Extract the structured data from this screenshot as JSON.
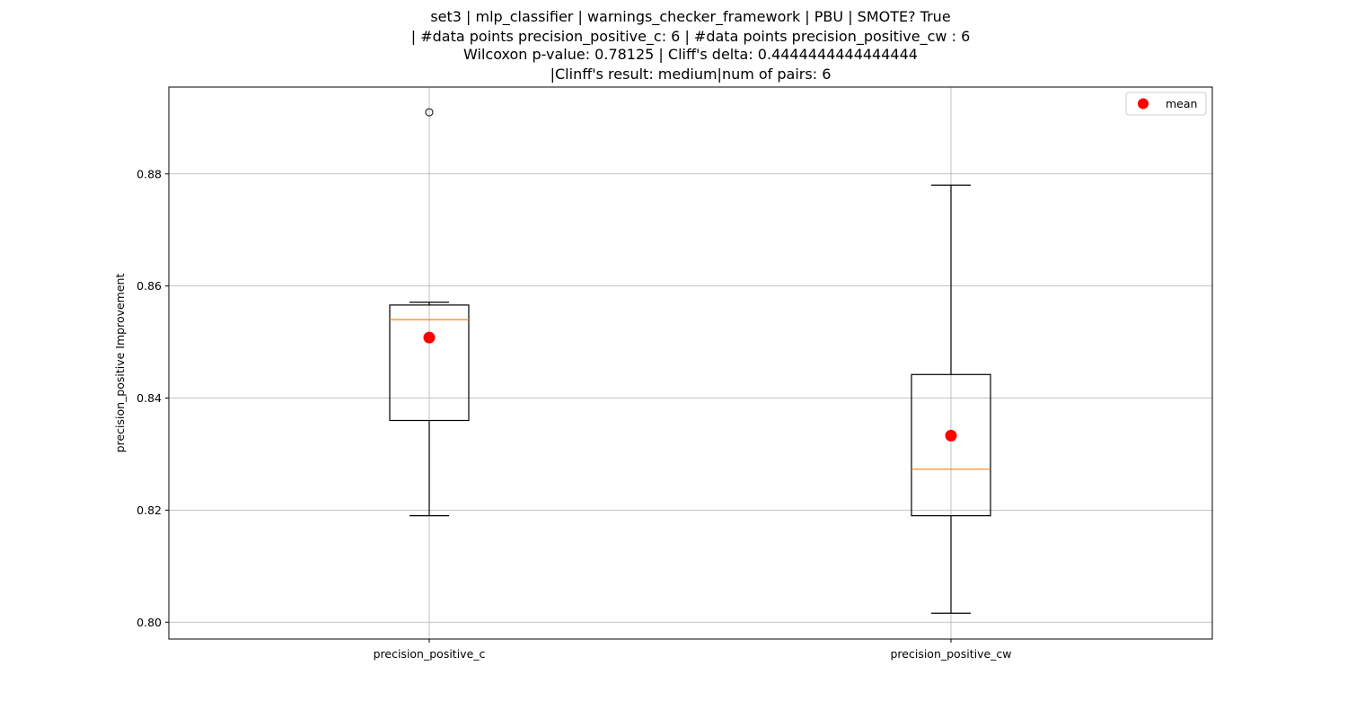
{
  "chart_data": {
    "type": "box",
    "title_lines": [
      "set3 | mlp_classifier | warnings_checker_framework | PBU | SMOTE? True",
      "| #data points precision_positive_c: 6 | #data points precision_positive_cw : 6",
      "Wilcoxon p-value: 0.78125 | Cliff's delta: 0.4444444444444444",
      "|Clinff's result: medium|num of pairs: 6"
    ],
    "xlabel": "",
    "ylabel": "precision_positive Improvement",
    "ylim": [
      0.797,
      0.8955
    ],
    "yticks": [
      0.8,
      0.82,
      0.84,
      0.86,
      0.88
    ],
    "ytick_labels": [
      "0.80",
      "0.82",
      "0.84",
      "0.86",
      "0.88"
    ],
    "grid": true,
    "legend": {
      "position": "top-right",
      "entries": [
        {
          "label": "mean",
          "color": "#ff0000",
          "marker": "circle"
        }
      ]
    },
    "categories": [
      "precision_positive_c",
      "precision_positive_cw"
    ],
    "boxes": [
      {
        "name": "precision_positive_c",
        "whisker_low": 0.819,
        "q1": 0.836,
        "median": 0.854,
        "q3": 0.8566,
        "whisker_high": 0.8571,
        "mean": 0.8508,
        "outliers": [
          0.891
        ]
      },
      {
        "name": "precision_positive_cw",
        "whisker_low": 0.8016,
        "q1": 0.819,
        "median": 0.8273,
        "q3": 0.8442,
        "whisker_high": 0.878,
        "mean": 0.8333,
        "outliers": []
      }
    ],
    "colors": {
      "box": "#000000",
      "median": "#ff7f0e",
      "mean": "#ff0000",
      "grid": "#b0b0b0"
    }
  }
}
